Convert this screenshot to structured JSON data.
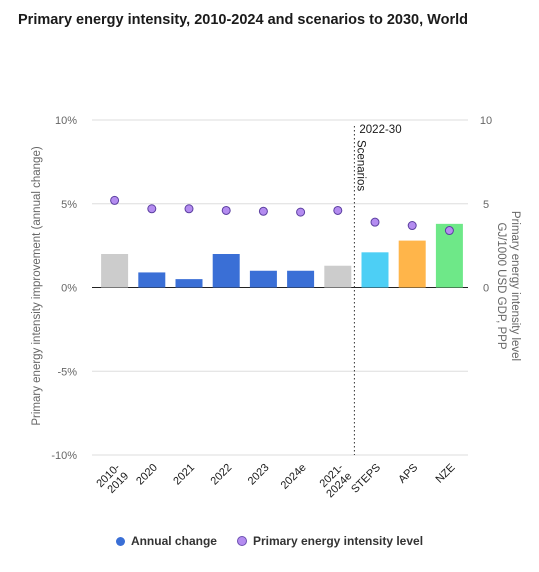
{
  "title": "Primary energy intensity, 2010-2024 and scenarios to 2030, World",
  "legend": [
    {
      "label": "Annual change",
      "color": "#3a6fd6"
    },
    {
      "label": "Primary energy intensity level",
      "color": "#b48cf0"
    }
  ],
  "chart_data": {
    "type": "bar",
    "categories": [
      "2010-2019",
      "2020",
      "2021",
      "2022",
      "2023",
      "2024e",
      "2021-2024e",
      "STEPS",
      "APS",
      "NZE"
    ],
    "category_label_lines": [
      [
        "2010-",
        "2019"
      ],
      [
        "2020"
      ],
      [
        "2021"
      ],
      [
        "2022"
      ],
      [
        "2023"
      ],
      [
        "2024e"
      ],
      [
        "2021-",
        "2024e"
      ],
      [
        "STEPS"
      ],
      [
        "APS"
      ],
      [
        "NZE"
      ]
    ],
    "series": [
      {
        "name": "Annual change",
        "axis": "left",
        "values": [
          2.0,
          0.9,
          0.5,
          2.0,
          1.0,
          1.0,
          1.3,
          2.1,
          2.8,
          3.8
        ],
        "colors": [
          "#cccccc",
          "#3a6fd6",
          "#3a6fd6",
          "#3a6fd6",
          "#3a6fd6",
          "#3a6fd6",
          "#cccccc",
          "#4dcff5",
          "#ffb54a",
          "#6ee888"
        ]
      },
      {
        "name": "Primary energy intensity level",
        "axis": "right",
        "type": "scatter",
        "values": [
          5.2,
          4.7,
          4.7,
          4.6,
          4.55,
          4.5,
          4.6,
          3.9,
          3.7,
          3.4
        ],
        "color": "#b48cf0"
      }
    ],
    "y_left": {
      "label": "Primary energy intensity improvement (annual change)",
      "range": [
        -10,
        10
      ],
      "ticks": [
        10,
        5,
        0,
        -5,
        -10
      ],
      "tick_labels": [
        "10%",
        "5%",
        "0%",
        "-5%",
        "-10%"
      ]
    },
    "y_right": {
      "label_lines": [
        "Primary energy intensity level",
        "GJ/1000 USD GDP, PPP"
      ],
      "range": [
        -10,
        10
      ],
      "ticks": [
        10,
        5,
        0
      ],
      "tick_labels": [
        "10",
        "5",
        "0"
      ]
    },
    "annotations": {
      "scenario_period": "2022-30",
      "scenario_label": "Scenarios"
    },
    "grid": true,
    "legend_position": "bottom"
  }
}
